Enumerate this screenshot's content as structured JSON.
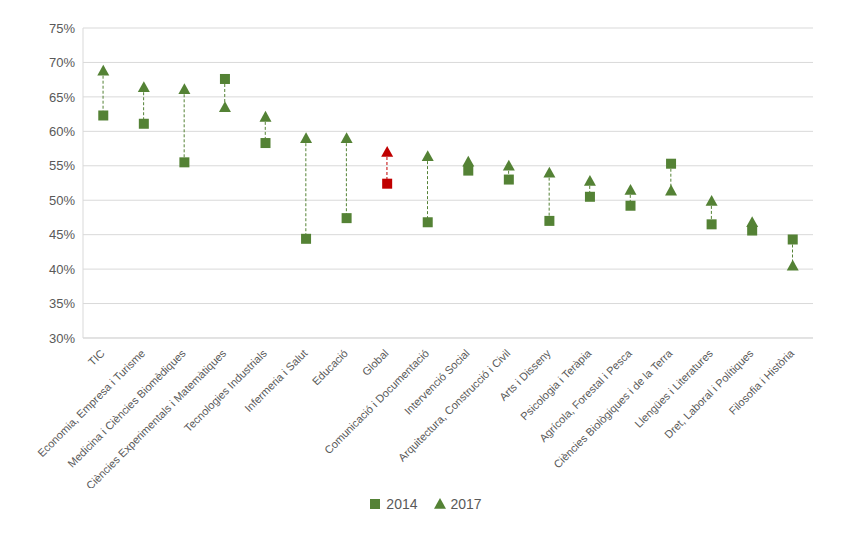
{
  "chart_data": {
    "type": "dumbbell",
    "categories": [
      "TIC",
      "Economia, Empresa i Turisme",
      "Medicina i Ciències Biomèdiques",
      "Ciències Experimentals i Matemàtiques",
      "Tecnologies Industrials",
      "Infermeria i Salut",
      "Educació",
      "Global",
      "Comunicació i Documentació",
      "Intervenció Social",
      "Arquitectura, Construcció i Civil",
      "Arts i Disseny",
      "Psicologia i Teràpia",
      "Agrícola, Forestal i Pesca",
      "Ciències Biològiques i de la Terra",
      "Llengües i Literatures",
      "Dret, Laboral i Polítiques",
      "Filosofia i Història"
    ],
    "series": [
      {
        "name": "2014",
        "marker": "square",
        "colors": [
          "#548235",
          "#548235",
          "#548235",
          "#548235",
          "#548235",
          "#548235",
          "#548235",
          "#c00000",
          "#548235",
          "#548235",
          "#548235",
          "#548235",
          "#548235",
          "#548235",
          "#548235",
          "#548235",
          "#548235",
          "#548235"
        ],
        "values": [
          62.3,
          61.1,
          55.5,
          67.6,
          58.3,
          44.4,
          47.4,
          52.4,
          46.8,
          54.3,
          53.0,
          47.0,
          50.5,
          49.2,
          55.3,
          46.5,
          45.6,
          44.3
        ]
      },
      {
        "name": "2017",
        "marker": "triangle",
        "colors": [
          "#548235",
          "#548235",
          "#548235",
          "#548235",
          "#548235",
          "#548235",
          "#548235",
          "#c00000",
          "#548235",
          "#548235",
          "#548235",
          "#548235",
          "#548235",
          "#548235",
          "#548235",
          "#548235",
          "#548235",
          "#548235"
        ],
        "values": [
          68.8,
          66.4,
          66.1,
          63.5,
          62.1,
          59.0,
          59.0,
          57.0,
          56.4,
          55.6,
          55.0,
          54.0,
          52.8,
          51.5,
          51.4,
          49.9,
          46.8,
          40.5
        ]
      }
    ],
    "ylim": [
      30,
      75
    ],
    "yticks": [
      {
        "value": 30,
        "label": "30%"
      },
      {
        "value": 35,
        "label": "35%"
      },
      {
        "value": 40,
        "label": "40%"
      },
      {
        "value": 45,
        "label": "45%"
      },
      {
        "value": 50,
        "label": "50%"
      },
      {
        "value": 55,
        "label": "55%"
      },
      {
        "value": 60,
        "label": "60%"
      },
      {
        "value": 65,
        "label": "65%"
      },
      {
        "value": 70,
        "label": "70%"
      },
      {
        "value": 75,
        "label": "75%"
      }
    ],
    "grid": true,
    "line_style": "dashed",
    "legend": "bottom"
  }
}
